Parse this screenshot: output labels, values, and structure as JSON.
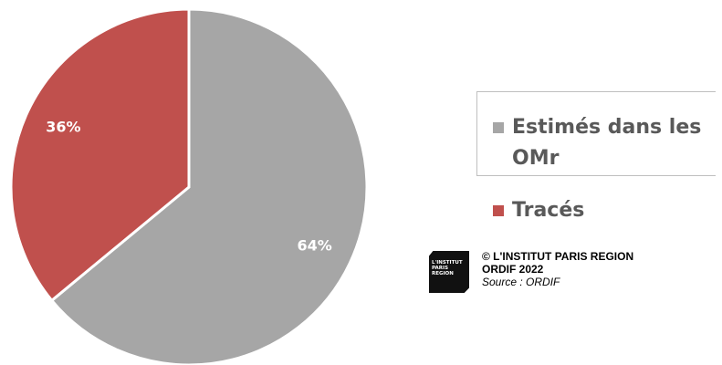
{
  "chart_data": {
    "type": "pie",
    "categories": [
      "Estimés dans les OMr",
      "Tracés"
    ],
    "values": [
      64,
      36
    ],
    "value_labels": [
      "64%",
      "36%"
    ],
    "colors": [
      "#a6a6a6",
      "#c0504d"
    ],
    "legend": "right"
  },
  "credits": {
    "logo_text": "L'INSTITUT PARIS REGION",
    "lines": [
      "© L'INSTITUT PARIS REGION",
      "ORDIF 2022"
    ],
    "source": "Source : ORDIF"
  }
}
